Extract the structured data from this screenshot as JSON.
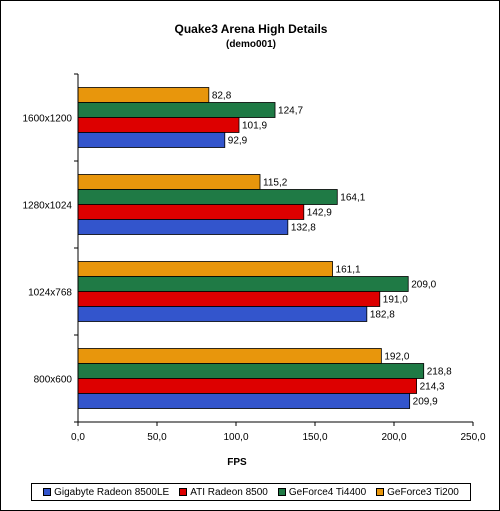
{
  "chart_data": {
    "type": "bar",
    "orientation": "horizontal",
    "title": "Quake3 Arena High Details",
    "subtitle": "(demo001)",
    "xlabel": "FPS",
    "ylabel": "",
    "xlim": [
      0,
      250
    ],
    "xticks": [
      "0,0",
      "50,0",
      "100,0",
      "150,0",
      "200,0",
      "250,0"
    ],
    "grid": false,
    "legend_position": "bottom",
    "categories": [
      "1600x1200",
      "1280x1024",
      "1024x768",
      "800x600"
    ],
    "series": [
      {
        "name": "Gigabyte Radeon 8500LE",
        "color": "#3355cc",
        "values": [
          92.9,
          132.8,
          182.8,
          209.9
        ],
        "labels": [
          "92,9",
          "132,8",
          "182,8",
          "209,9"
        ]
      },
      {
        "name": "ATI Radeon 8500",
        "color": "#dd0000",
        "values": [
          101.9,
          142.9,
          191.0,
          214.3
        ],
        "labels": [
          "101,9",
          "142,9",
          "191,0",
          "214,3"
        ]
      },
      {
        "name": "GeForce4 Ti4400",
        "color": "#1f7a45",
        "values": [
          124.7,
          164.1,
          209.0,
          218.8
        ],
        "labels": [
          "124,7",
          "164,1",
          "209,0",
          "218,8"
        ]
      },
      {
        "name": "GeForce3 Ti200",
        "color": "#e8960c",
        "values": [
          82.8,
          115.2,
          161.1,
          192.0
        ],
        "labels": [
          "82,8",
          "115,2",
          "161,1",
          "192,0"
        ]
      }
    ]
  }
}
